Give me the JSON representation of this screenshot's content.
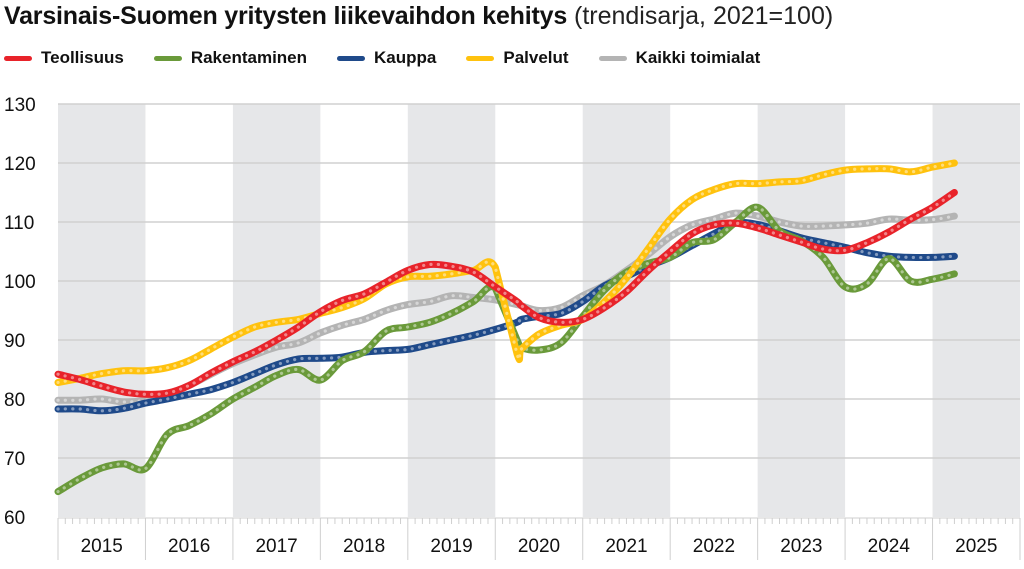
{
  "chart_data": {
    "type": "line",
    "title": "Varsinais-Suomen yritysten liikevaihdon kehitys",
    "subtitle": "(trendisarja, 2021=100)",
    "xlabel": "",
    "ylabel": "",
    "ylim": [
      60,
      130
    ],
    "yticks": [
      60,
      70,
      80,
      90,
      100,
      110,
      120,
      130
    ],
    "xlim": [
      2015.0,
      2026.0
    ],
    "xtick_labels": [
      "2015",
      "2016",
      "2017",
      "2018",
      "2019",
      "2020",
      "2021",
      "2022",
      "2023",
      "2024",
      "2025"
    ],
    "shaded_years": [
      "2015",
      "2017",
      "2019",
      "2021",
      "2023",
      "2025"
    ],
    "grid": true,
    "legend_position": "top-left",
    "frequency": "quarterly",
    "x": [
      2015.0,
      2015.25,
      2015.5,
      2015.75,
      2016.0,
      2016.25,
      2016.5,
      2016.75,
      2017.0,
      2017.25,
      2017.5,
      2017.75,
      2018.0,
      2018.25,
      2018.5,
      2018.75,
      2019.0,
      2019.25,
      2019.5,
      2019.75,
      2020.0,
      2020.25,
      2020.3,
      2020.5,
      2020.75,
      2021.0,
      2021.25,
      2021.5,
      2021.75,
      2022.0,
      2022.25,
      2022.5,
      2022.75,
      2023.0,
      2023.25,
      2023.5,
      2023.75,
      2024.0,
      2024.25,
      2024.5,
      2024.75,
      2025.0,
      2025.25
    ],
    "series": [
      {
        "name": "Teollisuus",
        "color": "#e8232a",
        "values": [
          84.2,
          83.3,
          82.2,
          81.2,
          80.8,
          81.0,
          82.3,
          84.4,
          86.3,
          88.0,
          90.0,
          92.2,
          94.8,
          96.7,
          97.8,
          99.8,
          101.8,
          102.8,
          102.5,
          101.5,
          99.0,
          96.5,
          95.8,
          93.8,
          93.0,
          93.5,
          95.5,
          98.2,
          101.8,
          105.0,
          108.0,
          109.5,
          109.8,
          109.0,
          107.8,
          106.6,
          105.4,
          105.2,
          106.5,
          108.3,
          110.5,
          112.5,
          115.0
        ]
      },
      {
        "name": "Rakentaminen",
        "color": "#6a9a3a",
        "values": [
          64.3,
          66.5,
          68.3,
          69.0,
          68.2,
          74.0,
          75.5,
          77.5,
          80.0,
          82.0,
          84.0,
          85.0,
          83.2,
          86.5,
          88.0,
          91.5,
          92.2,
          93.0,
          94.5,
          96.5,
          98.8,
          90.0,
          88.7,
          88.3,
          89.5,
          94.0,
          98.5,
          101.5,
          103.0,
          104.0,
          106.5,
          107.0,
          110.0,
          112.5,
          108.5,
          106.8,
          104.0,
          99.0,
          99.5,
          103.8,
          100.0,
          100.3,
          101.2
        ]
      },
      {
        "name": "Kauppa",
        "color": "#1f4a8a",
        "values": [
          78.3,
          78.3,
          78.0,
          78.4,
          79.3,
          80.0,
          80.8,
          81.6,
          82.8,
          84.3,
          85.8,
          86.8,
          86.9,
          87.1,
          87.9,
          88.2,
          88.4,
          89.2,
          90.0,
          90.8,
          91.8,
          93.0,
          93.5,
          94.0,
          94.5,
          96.5,
          99.2,
          100.8,
          102.5,
          104.0,
          106.0,
          108.0,
          109.8,
          109.6,
          108.5,
          107.3,
          106.5,
          105.7,
          104.8,
          104.2,
          104.0,
          104.0,
          104.2
        ]
      },
      {
        "name": "Palvelut",
        "color": "#ffc20e",
        "values": [
          82.8,
          83.5,
          84.3,
          84.8,
          84.8,
          85.3,
          86.5,
          88.5,
          90.5,
          92.2,
          93.0,
          93.5,
          94.5,
          95.5,
          97.0,
          99.5,
          100.7,
          100.8,
          101.2,
          101.8,
          102.3,
          87.6,
          88.5,
          91.0,
          92.5,
          93.5,
          96.5,
          100.5,
          105.5,
          110.5,
          113.8,
          115.5,
          116.5,
          116.5,
          116.8,
          117.0,
          118.0,
          118.8,
          119.0,
          119.0,
          118.5,
          119.3,
          120.0
        ]
      },
      {
        "name": "Kaikki toimialat",
        "color": "#b4b4b4",
        "values": [
          79.8,
          79.8,
          80.0,
          79.5,
          79.8,
          80.8,
          82.3,
          84.2,
          86.0,
          87.5,
          88.8,
          89.5,
          91.2,
          92.5,
          93.5,
          95.0,
          96.0,
          96.5,
          97.5,
          97.2,
          96.8,
          96.0,
          95.8,
          95.0,
          95.5,
          97.5,
          99.3,
          101.8,
          104.5,
          107.5,
          109.5,
          110.5,
          111.5,
          111.0,
          110.0,
          109.3,
          109.3,
          109.5,
          109.8,
          110.5,
          110.3,
          110.4,
          111.0
        ]
      }
    ]
  }
}
